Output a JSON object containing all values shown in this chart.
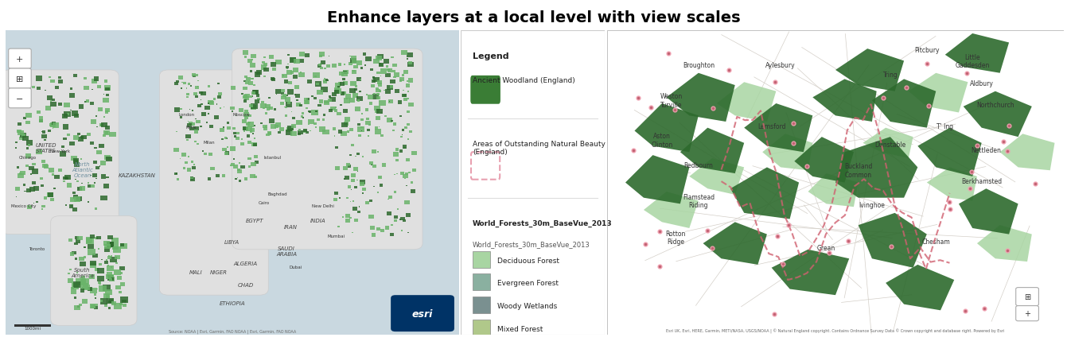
{
  "title": "Enhance layers at a local level with view scales",
  "title_fontsize": 14,
  "title_fontweight": "bold",
  "bg_color": "#ffffff",
  "forest_green_light": "#6ab46a",
  "forest_green_dark": "#2d6a2d",
  "right_map_forest_dark": "#2d6a2d",
  "right_map_forest_light": "#a8d5a2",
  "legend_title": "Legend",
  "legend_ancient_label": "Ancient Woodland (England)",
  "legend_ancient_color": "#3a7d35",
  "legend_aonb_label": "Areas of Outstanding Natural Beauty\n(England)",
  "legend_aonb_outline": "#e8a0b0",
  "legend_wf_header": "World_Forests_30m_BaseVue_2013",
  "legend_wf_sub": "World_Forests_30m_BaseVue_2013",
  "legend_forest_items": [
    {
      "label": "Deciduous Forest",
      "color": "#a8d5a2"
    },
    {
      "label": "Evergreen Forest",
      "color": "#8ab0a0"
    },
    {
      "label": "Woody Wetlands",
      "color": "#7a9090"
    },
    {
      "label": "Mixed Forest",
      "color": "#b0c88a"
    }
  ],
  "left_water_color": "#c9d8e0",
  "left_land_color": "#e0e0e0",
  "left_land_edge": "#cccccc",
  "right_map_bg": "#f0ece4",
  "right_boundary_color": "#d06070",
  "right_dot_outer": "#f0a0b0",
  "right_dot_inner": "#c06070",
  "esri_bg": "#003366",
  "esri_text": "esri",
  "source_left": "Source: NOAA | Esri, Garmin, FAO NOAA | Esri, Garmin, FAO NOAA",
  "source_right": "Esri UK, Esri, HERE, Garmin, METI/NASA, USGS/NOAA | © Natural England copyright. Contains Ordnance Survey Data © Crown copyright and database right. Powered by Esri",
  "ocean_label_color": "#7090a0",
  "label_color": "#444444",
  "city_color": "#333333"
}
